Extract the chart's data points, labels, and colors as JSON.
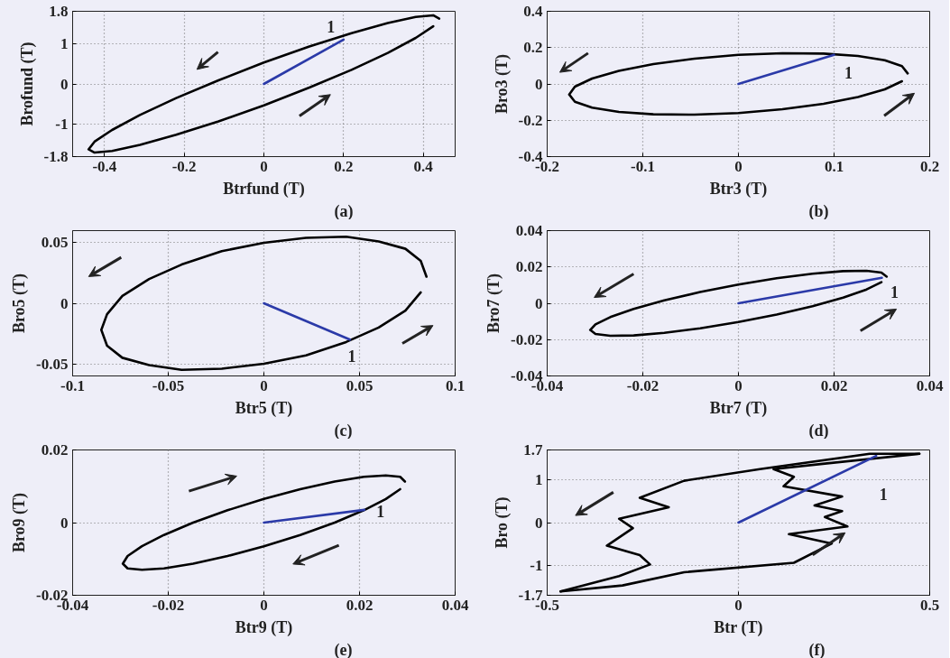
{
  "chart_data": [
    {
      "type": "line",
      "xlabel": "Btrfund (T)",
      "ylabel": "Brofund (T)",
      "xlim": [
        -0.48,
        0.48
      ],
      "ylim": [
        -1.8,
        1.8
      ],
      "xticks": [
        -0.4,
        -0.2,
        0,
        0.2,
        0.4
      ],
      "yticks": [
        -1.8,
        -1,
        0,
        1,
        1.8
      ],
      "grid": true,
      "series": [
        {
          "color": "#000000",
          "x": [
            0.44,
            0.425,
            0.381,
            0.311,
            0.22,
            0.114,
            0,
            -0.114,
            -0.22,
            -0.311,
            -0.381,
            -0.425,
            -0.44,
            -0.425,
            -0.381,
            -0.311,
            -0.22,
            -0.114,
            0,
            0.114,
            0.22,
            0.311,
            0.381,
            0.425
          ],
          "values": [
            1.62,
            1.7,
            1.66,
            1.51,
            1.26,
            0.93,
            0.53,
            0.09,
            -0.35,
            -0.77,
            -1.14,
            -1.43,
            -1.62,
            -1.7,
            -1.66,
            -1.51,
            -1.26,
            -0.93,
            -0.53,
            -0.09,
            0.35,
            0.77,
            1.14,
            1.43
          ]
        },
        {
          "color": "#2b3aa8",
          "x": [
            0,
            0.2
          ],
          "values": [
            0,
            1.1
          ]
        }
      ],
      "annotations": [
        {
          "text": "1",
          "x": 0.2,
          "y": 1.1
        },
        "(a)"
      ]
    },
    {
      "type": "line",
      "xlabel": "Btr3 (T)",
      "ylabel": "Bro3 (T)",
      "xlim": [
        -0.2,
        0.2
      ],
      "ylim": [
        -0.4,
        0.4
      ],
      "xticks": [
        -0.2,
        -0.1,
        0,
        0.1,
        0.2
      ],
      "yticks": [
        -0.4,
        -0.2,
        0,
        0.2,
        0.4
      ],
      "grid": true,
      "series": [
        {
          "color": "#000000",
          "x": [
            0.177,
            0.171,
            0.153,
            0.125,
            0.089,
            0.046,
            0,
            -0.046,
            -0.089,
            -0.125,
            -0.153,
            -0.171,
            -0.177,
            -0.171,
            -0.153,
            -0.125,
            -0.089,
            -0.046,
            0,
            0.046,
            0.089,
            0.125,
            0.153,
            0.171
          ],
          "values": [
            0.058,
            0.098,
            0.13,
            0.154,
            0.167,
            0.169,
            0.16,
            0.139,
            0.109,
            0.072,
            0.03,
            -0.015,
            -0.058,
            -0.098,
            -0.13,
            -0.154,
            -0.167,
            -0.169,
            -0.16,
            -0.139,
            -0.109,
            -0.072,
            -0.03,
            0.015
          ]
        },
        {
          "color": "#2b3aa8",
          "x": [
            0,
            0.1
          ],
          "values": [
            0,
            0.16
          ]
        }
      ],
      "annotations": [
        {
          "text": "1",
          "x": 0.1,
          "y": 0.16
        },
        "(b)"
      ]
    },
    {
      "type": "line",
      "xlabel": "Btr5 (T)",
      "ylabel": "Bro5 (T)",
      "xlim": [
        -0.1,
        0.1
      ],
      "ylim": [
        -0.06,
        0.06
      ],
      "xticks": [
        -0.1,
        -0.05,
        0,
        0.05,
        0.1
      ],
      "yticks": [
        -0.05,
        0,
        0.05
      ],
      "grid": true,
      "series": [
        {
          "color": "#000000",
          "x": [
            0.085,
            0.082,
            0.074,
            0.06,
            0.043,
            0.022,
            0,
            -0.022,
            -0.043,
            -0.06,
            -0.074,
            -0.082,
            -0.085,
            -0.082,
            -0.074,
            -0.06,
            -0.043,
            -0.022,
            0,
            0.022,
            0.043,
            0.06,
            0.074,
            0.082
          ],
          "values": [
            0.022,
            0.035,
            0.045,
            0.051,
            0.055,
            0.054,
            0.05,
            0.043,
            0.032,
            0.02,
            0.006,
            -0.009,
            -0.022,
            -0.035,
            -0.045,
            -0.051,
            -0.055,
            -0.054,
            -0.05,
            -0.043,
            -0.032,
            -0.02,
            -0.006,
            0.009
          ]
        },
        {
          "color": "#2b3aa8",
          "x": [
            0,
            0.045
          ],
          "values": [
            0,
            -0.03
          ]
        }
      ],
      "annotations": [
        {
          "text": "1",
          "x": 0.045,
          "y": -0.03
        },
        "(c)"
      ]
    },
    {
      "type": "line",
      "xlabel": "Btr7 (T)",
      "ylabel": "Bro7 (T)",
      "xlim": [
        -0.04,
        0.04
      ],
      "ylim": [
        -0.04,
        0.04
      ],
      "xticks": [
        -0.04,
        -0.02,
        0,
        0.02,
        0.04
      ],
      "yticks": [
        -0.04,
        -0.02,
        0,
        0.02,
        0.04
      ],
      "grid": true,
      "series": [
        {
          "color": "#000000",
          "x": [
            0.031,
            0.0299,
            0.0268,
            0.0219,
            0.0155,
            0.008,
            0,
            -0.008,
            -0.0155,
            -0.0219,
            -0.0268,
            -0.0299,
            -0.031,
            -0.0299,
            -0.0268,
            -0.0219,
            -0.0155,
            -0.008,
            0,
            0.008,
            0.0155,
            0.0219,
            0.0268,
            0.0299
          ],
          "values": [
            0.0147,
            0.0169,
            0.0179,
            0.0177,
            0.0163,
            0.0138,
            0.0103,
            0.0062,
            0.0016,
            -0.0031,
            -0.0076,
            -0.0116,
            -0.0147,
            -0.0169,
            -0.0179,
            -0.0177,
            -0.0163,
            -0.0138,
            -0.0103,
            -0.0062,
            -0.0016,
            0.0031,
            0.0076,
            0.0116
          ]
        },
        {
          "color": "#2b3aa8",
          "x": [
            0,
            0.03
          ],
          "values": [
            0,
            0.014
          ]
        }
      ],
      "annotations": [
        {
          "text": "1",
          "x": 0.03,
          "y": 0.014
        },
        "(d)"
      ]
    },
    {
      "type": "line",
      "xlabel": "Btr9 (T)",
      "ylabel": "Bro9 (T)",
      "xlim": [
        -0.04,
        0.04
      ],
      "ylim": [
        -0.02,
        0.02
      ],
      "xticks": [
        -0.04,
        -0.02,
        0,
        0.02,
        0.04
      ],
      "yticks": [
        -0.02,
        0,
        0.02
      ],
      "grid": true,
      "series": [
        {
          "color": "#000000",
          "x": [
            0.0295,
            0.0285,
            0.0255,
            0.0209,
            0.0148,
            0.0076,
            0,
            -0.0076,
            -0.0148,
            -0.0209,
            -0.0255,
            -0.0285,
            -0.0295,
            -0.0285,
            -0.0255,
            -0.0209,
            -0.0148,
            -0.0076,
            0,
            0.0076,
            0.0148,
            0.0209,
            0.0255,
            0.0285
          ],
          "values": [
            0.0113,
            0.0126,
            0.013,
            0.0126,
            0.0113,
            0.0092,
            0.0065,
            0.0034,
            0,
            -0.0034,
            -0.0065,
            -0.0092,
            -0.0113,
            -0.0126,
            -0.013,
            -0.0126,
            -0.0113,
            -0.0092,
            -0.0065,
            -0.0034,
            0,
            0.0034,
            0.0065,
            0.0092
          ]
        },
        {
          "color": "#2b3aa8",
          "x": [
            0,
            0.021
          ],
          "values": [
            0,
            0.0035
          ]
        }
      ],
      "annotations": [
        {
          "text": "1",
          "x": 0.021,
          "y": 0.0035
        },
        "(e)"
      ]
    },
    {
      "type": "line",
      "xlabel": "Btr (T)",
      "ylabel": "Bro (T)",
      "xlim": [
        -0.5,
        0.5
      ],
      "ylim": [
        -1.7,
        1.7
      ],
      "xticks": [
        -0.5,
        0,
        0.5
      ],
      "yticks": [
        -1.7,
        -1,
        0,
        1,
        1.7
      ],
      "grid": true,
      "series": [
        {
          "color": "#000000",
          "x": [
            0.473,
            0.343,
            0.056,
            -0.142,
            -0.258,
            -0.182,
            -0.312,
            -0.276,
            -0.344,
            -0.258,
            -0.231,
            -0.312,
            -0.465
          ],
          "values": [
            1.61,
            1.61,
            1.25,
            0.98,
            0.58,
            0.36,
            0.09,
            -0.13,
            -0.54,
            -0.76,
            -0.98,
            -1.25,
            -1.61
          ]
        },
        {
          "color": "#000000",
          "x": [
            -0.465,
            -0.303,
            -0.142,
            0.145,
            0.244,
            0.132,
            0.285,
            0.226,
            0.271,
            0.199,
            0.271,
            0.118,
            0.145,
            0.092,
            0.226,
            0.473
          ],
          "values": [
            -1.61,
            -1.47,
            -1.16,
            -0.94,
            -0.49,
            -0.27,
            -0.09,
            0.13,
            0.27,
            0.4,
            0.61,
            0.85,
            1.07,
            1.25,
            1.38,
            1.61
          ]
        },
        {
          "color": "#2b3aa8",
          "x": [
            0,
            0.36
          ],
          "values": [
            0,
            1.56
          ]
        }
      ],
      "annotations": [
        {
          "text": "1",
          "x": 0.36,
          "y": 1.56
        },
        "(f)"
      ]
    }
  ]
}
